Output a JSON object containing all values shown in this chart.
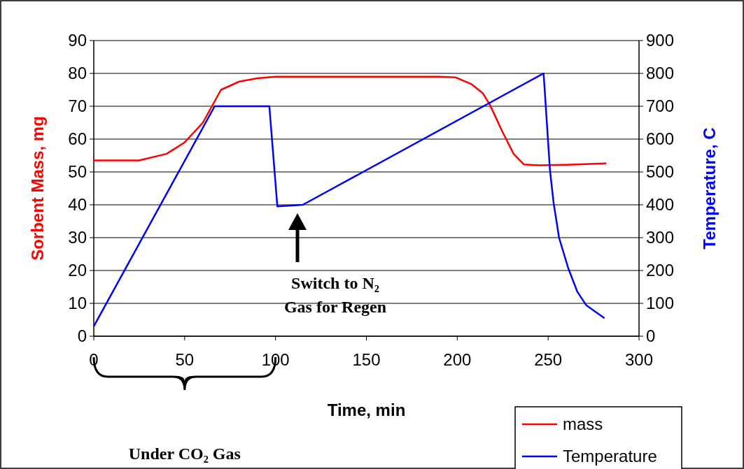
{
  "chart_data": {
    "type": "line",
    "xlabel": "Time, min",
    "ylabel": "Sorbent Mass, mg",
    "y2label": "Temperature, C",
    "xlim": [
      0,
      300
    ],
    "xticks": [
      0,
      50,
      100,
      150,
      200,
      250,
      300
    ],
    "ylim": [
      0,
      90
    ],
    "yticks": [
      0,
      10,
      20,
      30,
      40,
      50,
      60,
      70,
      80,
      90
    ],
    "y2lim": [
      0,
      900
    ],
    "y2ticks": [
      0,
      100,
      200,
      300,
      400,
      500,
      600,
      700,
      800,
      900
    ],
    "grid": "y",
    "legend": "bottom right",
    "marker": "none",
    "line_style": "solid",
    "series": [
      {
        "name": "mass",
        "color": "#ff0000",
        "x": [
          0,
          25,
          40,
          50,
          60,
          65,
          70,
          80,
          90,
          100,
          180,
          190,
          199,
          207.6,
          214,
          218,
          224.6,
          231,
          236.6,
          245,
          260,
          282
        ],
        "values": [
          53.5,
          53.5,
          55.5,
          59,
          65,
          70,
          75,
          77.5,
          78.5,
          79,
          79,
          79,
          78.8,
          76.8,
          74,
          70.4,
          62.5,
          55.5,
          52.3,
          52,
          52.2,
          52.6
        ]
      },
      {
        "name": "Temperature",
        "color": "#0000ff",
        "axis": "y2",
        "x": [
          0,
          66.5,
          96.6,
          101,
          115,
          247.5,
          251,
          253,
          256,
          261,
          266,
          271,
          281
        ],
        "values": [
          30,
          700,
          700,
          395,
          400,
          800,
          506,
          406,
          300,
          208,
          136,
          94,
          55
        ]
      }
    ],
    "annotations": [
      "Switch to N₂ Gas for Regen",
      "Under CO₂ Gas"
    ]
  }
}
